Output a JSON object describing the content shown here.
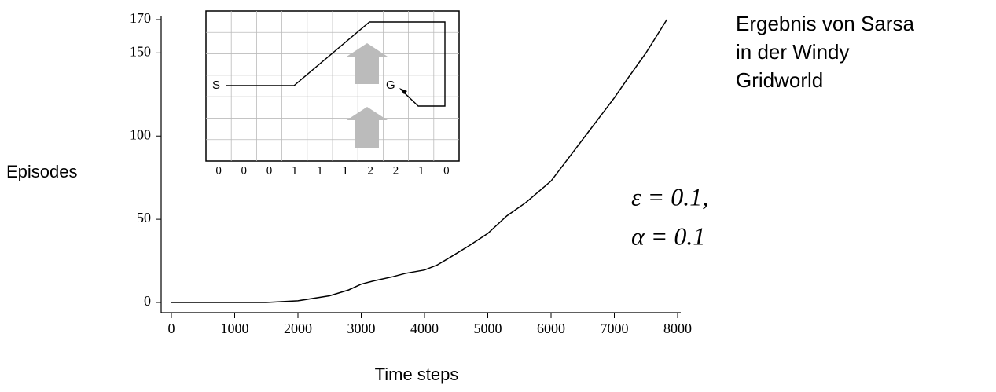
{
  "chart_data": {
    "type": "line",
    "y_label": "Episodes",
    "x_label": "Time steps",
    "x": [
      0,
      1500,
      2000,
      2500,
      2800,
      3000,
      3200,
      3500,
      3700,
      4000,
      4200,
      4400,
      4700,
      5000,
      5300,
      5600,
      6000,
      6300,
      6600,
      7000,
      7200,
      7500,
      7830
    ],
    "values": [
      0,
      0,
      1,
      4,
      7.5,
      11,
      13,
      15.5,
      17.5,
      19.5,
      22.5,
      27,
      34,
      41.5,
      52,
      60,
      73,
      88,
      103,
      123,
      134,
      150,
      170
    ],
    "color": "#000000",
    "xlim": [
      0,
      8000
    ],
    "xticks": [
      0,
      1000,
      2000,
      3000,
      4000,
      5000,
      6000,
      7000,
      8000
    ],
    "ylim": [
      0,
      170
    ],
    "yticks": [
      0,
      50,
      100,
      150,
      170
    ]
  },
  "inset": {
    "start": "S",
    "goal": "G",
    "wind": [
      0,
      0,
      0,
      1,
      1,
      1,
      2,
      2,
      1,
      0
    ]
  },
  "annotation": {
    "lines": [
      "Ergebnis von Sarsa",
      "in der Windy",
      "Gridworld"
    ]
  },
  "parameters": [
    "ε = 0.1,",
    "α = 0.1"
  ]
}
